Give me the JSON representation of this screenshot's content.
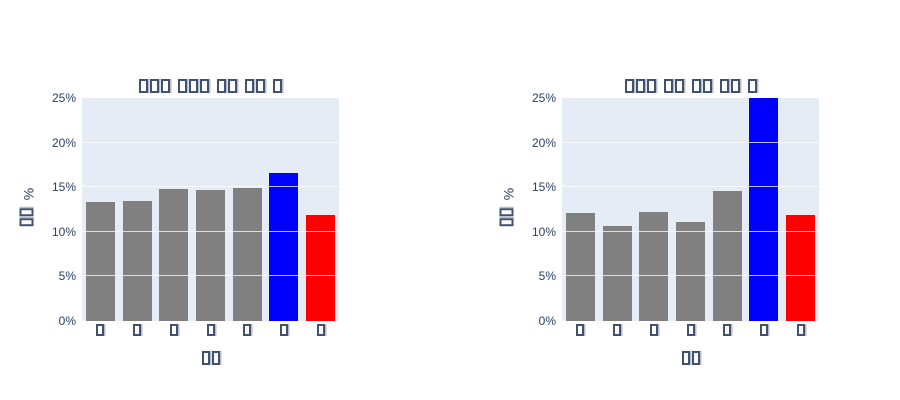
{
  "page": {
    "background": "#ffffff",
    "text_color": "#2a3f5f",
    "note": "CJK labels are rendered as missing-glyph tofu boxes in the screenshot"
  },
  "chart_data": [
    {
      "type": "bar",
      "position": "left",
      "title": "□□□ □□□ □□ □□ □",
      "title_word_lengths": [
        3,
        3,
        2,
        2,
        1
      ],
      "xlabel": "□□",
      "xlabel_word_lengths": [
        2
      ],
      "ylabel": "□□ %",
      "ylabel_box_count": 2,
      "ylabel_suffix": "%",
      "categories": [
        "□",
        "□",
        "□",
        "□",
        "□",
        "□",
        "□"
      ],
      "values": [
        13.3,
        13.5,
        14.8,
        14.7,
        14.9,
        16.6,
        11.9
      ],
      "bar_colors": [
        "#808080",
        "#808080",
        "#808080",
        "#808080",
        "#808080",
        "#0000ff",
        "#ff0000"
      ],
      "ylim": [
        0,
        25
      ],
      "ytick_values": [
        0,
        5,
        10,
        15,
        20,
        25
      ],
      "ytick_labels": [
        "0%",
        "5%",
        "10%",
        "15%",
        "20%",
        "25%"
      ],
      "grid": true,
      "legend": "none",
      "plot_bg": "#e5ecf6",
      "grid_color": "#ffffff"
    },
    {
      "type": "bar",
      "position": "right",
      "title": "□□□ □□ □□ □□ □",
      "title_word_lengths": [
        3,
        2,
        2,
        2,
        1
      ],
      "xlabel": "□□",
      "xlabel_word_lengths": [
        2
      ],
      "ylabel": "□□ %",
      "ylabel_box_count": 2,
      "ylabel_suffix": "%",
      "categories": [
        "□",
        "□",
        "□",
        "□",
        "□",
        "□",
        "□"
      ],
      "values": [
        12.1,
        10.7,
        12.2,
        11.1,
        14.6,
        25.0,
        11.9
      ],
      "bar_colors": [
        "#808080",
        "#808080",
        "#808080",
        "#808080",
        "#808080",
        "#0000ff",
        "#ff0000"
      ],
      "ylim": [
        0,
        25
      ],
      "ytick_values": [
        0,
        5,
        10,
        15,
        20,
        25
      ],
      "ytick_labels": [
        "0%",
        "5%",
        "10%",
        "15%",
        "20%",
        "25%"
      ],
      "grid": true,
      "legend": "none",
      "plot_bg": "#e5ecf6",
      "grid_color": "#ffffff",
      "clipped_bars": [
        5
      ]
    }
  ]
}
